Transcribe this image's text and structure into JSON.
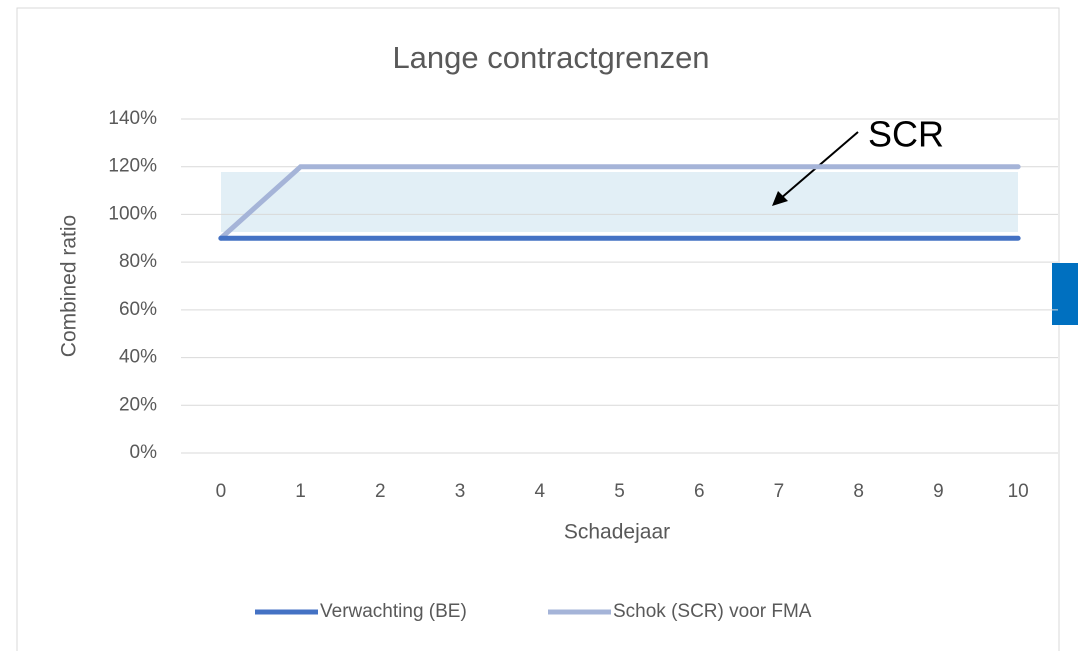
{
  "chart_data": {
    "type": "line",
    "title": "Lange contractgrenzen",
    "x_label": "Schadejaar",
    "y_label": "Combined ratio",
    "annotation": "SCR",
    "x": [
      0,
      1,
      2,
      3,
      4,
      5,
      6,
      7,
      8,
      9,
      10
    ],
    "xlim": [
      -0.5,
      10.5
    ],
    "ylim": [
      0,
      140
    ],
    "yticks": [
      {
        "value": 0,
        "label": "0%"
      },
      {
        "value": 20,
        "label": "20%"
      },
      {
        "value": 40,
        "label": "40%"
      },
      {
        "value": 60,
        "label": "60%"
      },
      {
        "value": 80,
        "label": "80%"
      },
      {
        "value": 100,
        "label": "100%"
      },
      {
        "value": 120,
        "label": "120%"
      },
      {
        "value": 140,
        "label": "140%"
      }
    ],
    "grid": true,
    "legend": "bottom",
    "series": [
      {
        "name": "Verwachting (BE)",
        "color": "#4472c4",
        "values": [
          90,
          90,
          90,
          90,
          90,
          90,
          90,
          90,
          90,
          90,
          90
        ]
      },
      {
        "name": "Schok (SCR) voor FMA",
        "color": "#a5b4d8",
        "values": [
          90,
          120,
          120,
          120,
          120,
          120,
          120,
          120,
          120,
          120,
          120
        ]
      }
    ]
  }
}
